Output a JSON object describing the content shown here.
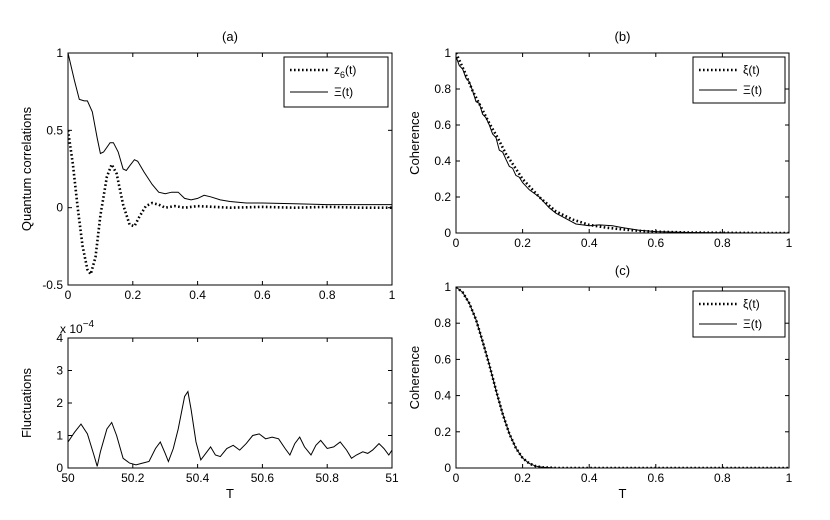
{
  "chart_data": [
    {
      "id": "a",
      "type": "line",
      "title": "(a)",
      "xlabel": "",
      "ylabel": "Quantum correlations",
      "xlim": [
        0,
        1
      ],
      "ylim": [
        -0.5,
        1
      ],
      "xticks": [
        "0",
        "0.2",
        "0.4",
        "0.6",
        "0.8",
        "1"
      ],
      "yticks": [
        "-0.5",
        "0",
        "0.5",
        "1"
      ],
      "legend": {
        "placement": "top-right"
      },
      "series": [
        {
          "name": "z",
          "name_sub": "6",
          "name_suffix": "(t)",
          "style": "dotted",
          "points": [
            [
              0,
              0.5
            ],
            [
              0.015,
              0.28
            ],
            [
              0.03,
              0.0
            ],
            [
              0.045,
              -0.25
            ],
            [
              0.06,
              -0.4
            ],
            [
              0.07,
              -0.43
            ],
            [
              0.085,
              -0.32
            ],
            [
              0.1,
              -0.05
            ],
            [
              0.12,
              0.2
            ],
            [
              0.135,
              0.28
            ],
            [
              0.15,
              0.22
            ],
            [
              0.17,
              0.02
            ],
            [
              0.19,
              -0.11
            ],
            [
              0.205,
              -0.12
            ],
            [
              0.22,
              -0.06
            ],
            [
              0.24,
              0.01
            ],
            [
              0.26,
              0.03
            ],
            [
              0.28,
              0.02
            ],
            [
              0.3,
              0.0
            ],
            [
              0.33,
              0.01
            ],
            [
              0.36,
              0.0
            ],
            [
              0.4,
              0.01
            ],
            [
              0.45,
              0.005
            ],
            [
              0.5,
              0.0
            ],
            [
              0.6,
              0.005
            ],
            [
              0.7,
              0.0
            ],
            [
              0.8,
              0.005
            ],
            [
              0.9,
              0.0
            ],
            [
              1,
              0.0
            ]
          ]
        },
        {
          "name": "Ξ(t)",
          "style": "solid",
          "points": [
            [
              0,
              1.0
            ],
            [
              0.02,
              0.82
            ],
            [
              0.035,
              0.7
            ],
            [
              0.05,
              0.69
            ],
            [
              0.06,
              0.69
            ],
            [
              0.075,
              0.62
            ],
            [
              0.09,
              0.45
            ],
            [
              0.1,
              0.35
            ],
            [
              0.11,
              0.36
            ],
            [
              0.13,
              0.42
            ],
            [
              0.14,
              0.42
            ],
            [
              0.155,
              0.36
            ],
            [
              0.17,
              0.25
            ],
            [
              0.18,
              0.24
            ],
            [
              0.19,
              0.27
            ],
            [
              0.205,
              0.31
            ],
            [
              0.215,
              0.3
            ],
            [
              0.235,
              0.23
            ],
            [
              0.26,
              0.15
            ],
            [
              0.28,
              0.1
            ],
            [
              0.3,
              0.09
            ],
            [
              0.32,
              0.1
            ],
            [
              0.34,
              0.1
            ],
            [
              0.36,
              0.06
            ],
            [
              0.38,
              0.05
            ],
            [
              0.4,
              0.06
            ],
            [
              0.42,
              0.08
            ],
            [
              0.44,
              0.07
            ],
            [
              0.47,
              0.05
            ],
            [
              0.5,
              0.04
            ],
            [
              0.55,
              0.03
            ],
            [
              0.6,
              0.03
            ],
            [
              0.7,
              0.025
            ],
            [
              0.8,
              0.02
            ],
            [
              0.9,
              0.02
            ],
            [
              1,
              0.02
            ]
          ]
        }
      ]
    },
    {
      "id": "a2",
      "type": "line",
      "title": "",
      "xlabel": "T",
      "ylabel": "Fluctuations",
      "xlim": [
        50,
        51
      ],
      "ylim": [
        0,
        4
      ],
      "scale_note": "x 10",
      "scale_exponent": "−4",
      "xticks": [
        "50",
        "50.2",
        "50.4",
        "50.6",
        "50.8",
        "51"
      ],
      "yticks": [
        "0",
        "1",
        "2",
        "3",
        "4"
      ],
      "series": [
        {
          "name": "",
          "style": "solid",
          "points": [
            [
              50,
              0.8
            ],
            [
              50.02,
              1.1
            ],
            [
              50.04,
              1.35
            ],
            [
              50.06,
              1.05
            ],
            [
              50.08,
              0.4
            ],
            [
              50.09,
              0.05
            ],
            [
              50.1,
              0.5
            ],
            [
              50.12,
              1.2
            ],
            [
              50.135,
              1.4
            ],
            [
              50.15,
              1.0
            ],
            [
              50.17,
              0.3
            ],
            [
              50.19,
              0.15
            ],
            [
              50.21,
              0.1
            ],
            [
              50.23,
              0.15
            ],
            [
              50.25,
              0.2
            ],
            [
              50.27,
              0.6
            ],
            [
              50.285,
              0.8
            ],
            [
              50.3,
              0.45
            ],
            [
              50.31,
              0.2
            ],
            [
              50.325,
              0.6
            ],
            [
              50.34,
              1.2
            ],
            [
              50.36,
              2.2
            ],
            [
              50.37,
              2.35
            ],
            [
              50.38,
              1.8
            ],
            [
              50.395,
              0.8
            ],
            [
              50.41,
              0.25
            ],
            [
              50.425,
              0.45
            ],
            [
              50.44,
              0.65
            ],
            [
              50.455,
              0.4
            ],
            [
              50.47,
              0.35
            ],
            [
              50.49,
              0.6
            ],
            [
              50.51,
              0.7
            ],
            [
              50.53,
              0.55
            ],
            [
              50.55,
              0.75
            ],
            [
              50.57,
              1.0
            ],
            [
              50.59,
              1.05
            ],
            [
              50.61,
              0.9
            ],
            [
              50.63,
              0.95
            ],
            [
              50.65,
              0.9
            ],
            [
              50.67,
              0.6
            ],
            [
              50.685,
              0.4
            ],
            [
              50.7,
              0.75
            ],
            [
              50.715,
              0.95
            ],
            [
              50.73,
              0.65
            ],
            [
              50.75,
              0.4
            ],
            [
              50.765,
              0.7
            ],
            [
              50.78,
              0.85
            ],
            [
              50.8,
              0.6
            ],
            [
              50.82,
              0.65
            ],
            [
              50.84,
              0.8
            ],
            [
              50.86,
              0.55
            ],
            [
              50.875,
              0.3
            ],
            [
              50.89,
              0.4
            ],
            [
              50.91,
              0.5
            ],
            [
              50.925,
              0.45
            ],
            [
              50.94,
              0.55
            ],
            [
              50.96,
              0.75
            ],
            [
              50.975,
              0.6
            ],
            [
              50.99,
              0.4
            ],
            [
              51,
              0.55
            ]
          ]
        }
      ]
    },
    {
      "id": "b",
      "type": "line",
      "title": "(b)",
      "xlabel": "",
      "ylabel": "Coherence",
      "xlim": [
        0,
        1
      ],
      "ylim": [
        0,
        1
      ],
      "xticks": [
        "0",
        "0.2",
        "0.4",
        "0.6",
        "0.8",
        "1"
      ],
      "yticks": [
        "0",
        "0.2",
        "0.4",
        "0.6",
        "0.8",
        "1"
      ],
      "legend": {
        "placement": "top-right"
      },
      "series": [
        {
          "name": "ξ(t)",
          "style": "dotted",
          "points": [
            [
              0,
              1.0
            ],
            [
              0.025,
              0.9
            ],
            [
              0.05,
              0.79
            ],
            [
              0.075,
              0.7
            ],
            [
              0.1,
              0.61
            ],
            [
              0.125,
              0.53
            ],
            [
              0.15,
              0.44
            ],
            [
              0.175,
              0.37
            ],
            [
              0.2,
              0.3
            ],
            [
              0.25,
              0.2
            ],
            [
              0.3,
              0.12
            ],
            [
              0.35,
              0.075
            ],
            [
              0.4,
              0.045
            ],
            [
              0.45,
              0.03
            ],
            [
              0.5,
              0.02
            ],
            [
              0.55,
              0.012
            ],
            [
              0.6,
              0.007
            ],
            [
              0.7,
              0.003
            ],
            [
              0.8,
              0.001
            ],
            [
              0.9,
              0.0
            ],
            [
              1,
              0.0
            ]
          ]
        },
        {
          "name": "Ξ(t)",
          "style": "solid",
          "points": [
            [
              0,
              0.98
            ],
            [
              0.01,
              0.93
            ],
            [
              0.02,
              0.91
            ],
            [
              0.03,
              0.86
            ],
            [
              0.04,
              0.84
            ],
            [
              0.05,
              0.79
            ],
            [
              0.06,
              0.73
            ],
            [
              0.07,
              0.72
            ],
            [
              0.08,
              0.66
            ],
            [
              0.09,
              0.64
            ],
            [
              0.1,
              0.6
            ],
            [
              0.11,
              0.55
            ],
            [
              0.12,
              0.53
            ],
            [
              0.13,
              0.46
            ],
            [
              0.14,
              0.45
            ],
            [
              0.15,
              0.41
            ],
            [
              0.16,
              0.37
            ],
            [
              0.17,
              0.36
            ],
            [
              0.18,
              0.32
            ],
            [
              0.19,
              0.31
            ],
            [
              0.2,
              0.28
            ],
            [
              0.22,
              0.24
            ],
            [
              0.25,
              0.2
            ],
            [
              0.28,
              0.14
            ],
            [
              0.3,
              0.11
            ],
            [
              0.33,
              0.08
            ],
            [
              0.36,
              0.05
            ],
            [
              0.4,
              0.04
            ],
            [
              0.43,
              0.045
            ],
            [
              0.47,
              0.04
            ],
            [
              0.5,
              0.03
            ],
            [
              0.55,
              0.015
            ],
            [
              0.6,
              0.008
            ],
            [
              0.7,
              0.003
            ],
            [
              0.8,
              0.001
            ],
            [
              0.9,
              0.0
            ],
            [
              1,
              0.0
            ]
          ]
        }
      ]
    },
    {
      "id": "c",
      "type": "line",
      "title": "(c)",
      "xlabel": "T",
      "ylabel": "Coherence",
      "xlim": [
        0,
        1
      ],
      "ylim": [
        0,
        1
      ],
      "xticks": [
        "0",
        "0.2",
        "0.4",
        "0.6",
        "0.8",
        "1"
      ],
      "yticks": [
        "0",
        "0.2",
        "0.4",
        "0.6",
        "0.8",
        "1"
      ],
      "legend": {
        "placement": "top-right"
      },
      "series": [
        {
          "name": "ξ(t)",
          "style": "dotted",
          "points": [
            [
              0,
              1.0
            ],
            [
              0.02,
              0.97
            ],
            [
              0.04,
              0.91
            ],
            [
              0.06,
              0.82
            ],
            [
              0.08,
              0.7
            ],
            [
              0.1,
              0.57
            ],
            [
              0.12,
              0.43
            ],
            [
              0.14,
              0.3
            ],
            [
              0.16,
              0.19
            ],
            [
              0.18,
              0.11
            ],
            [
              0.2,
              0.055
            ],
            [
              0.22,
              0.025
            ],
            [
              0.24,
              0.01
            ],
            [
              0.26,
              0.004
            ],
            [
              0.3,
              0.0
            ],
            [
              0.4,
              0.0
            ],
            [
              0.6,
              0.0
            ],
            [
              0.8,
              0.0
            ],
            [
              1,
              0.0
            ]
          ]
        },
        {
          "name": "Ξ(t)",
          "style": "solid",
          "points": [
            [
              0,
              1.0
            ],
            [
              0.02,
              0.97
            ],
            [
              0.04,
              0.91
            ],
            [
              0.06,
              0.82
            ],
            [
              0.08,
              0.7
            ],
            [
              0.1,
              0.57
            ],
            [
              0.12,
              0.43
            ],
            [
              0.14,
              0.3
            ],
            [
              0.16,
              0.19
            ],
            [
              0.18,
              0.11
            ],
            [
              0.2,
              0.055
            ],
            [
              0.22,
              0.025
            ],
            [
              0.24,
              0.01
            ],
            [
              0.26,
              0.004
            ],
            [
              0.3,
              0.0
            ],
            [
              0.4,
              0.0
            ],
            [
              0.6,
              0.0
            ],
            [
              0.8,
              0.0
            ],
            [
              1,
              0.0
            ]
          ]
        }
      ]
    }
  ]
}
